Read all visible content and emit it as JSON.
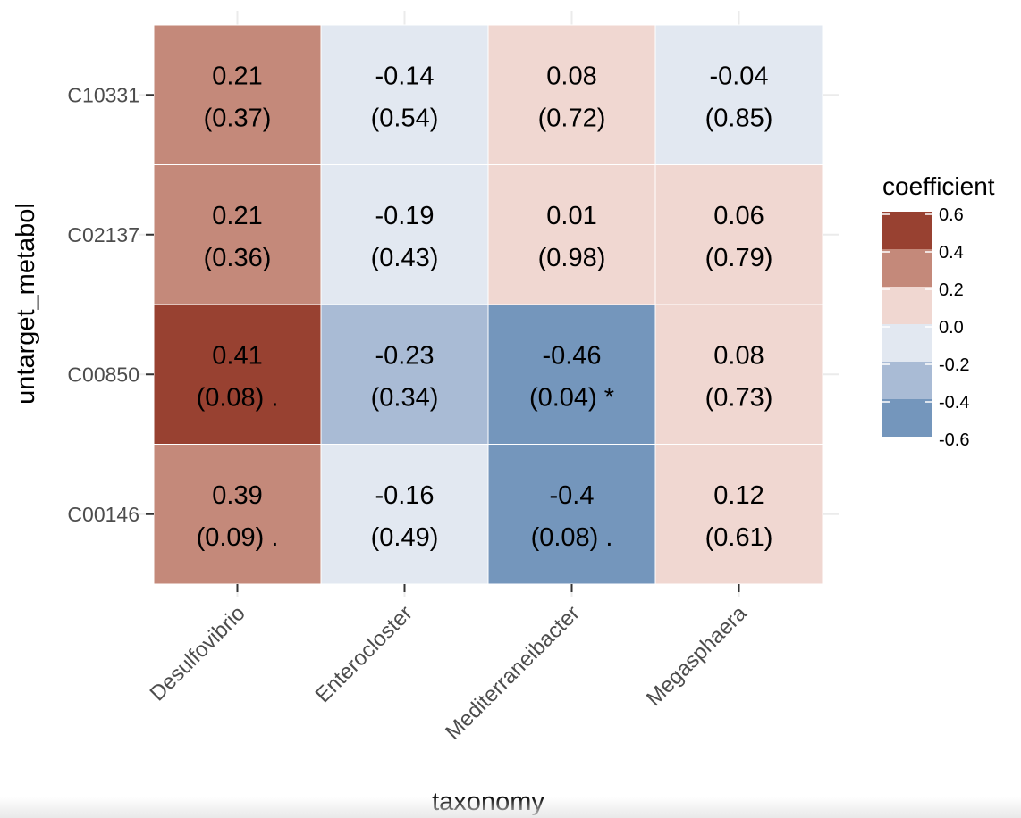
{
  "chart_data": {
    "type": "heatmap",
    "xlabel": "taxonomy",
    "ylabel": "untarget_metabol",
    "x_categories": [
      "Desulfovibrio",
      "Enterocloster",
      "Mediterraneibacter",
      "Megasphaera"
    ],
    "y_categories": [
      "C10331",
      "C02137",
      "C00850",
      "C00146"
    ],
    "cells": [
      {
        "y": "C10331",
        "x": "Desulfovibrio",
        "value": 0.21,
        "value_label": "0.21",
        "p_label": "(0.37)",
        "color": "#c4897a"
      },
      {
        "y": "C10331",
        "x": "Enterocloster",
        "value": -0.14,
        "value_label": "-0.14",
        "p_label": "(0.54)",
        "color": "#e2e8f1"
      },
      {
        "y": "C10331",
        "x": "Mediterraneibacter",
        "value": 0.08,
        "value_label": "0.08",
        "p_label": "(0.72)",
        "color": "#f0d7d1"
      },
      {
        "y": "C10331",
        "x": "Megasphaera",
        "value": -0.04,
        "value_label": "-0.04",
        "p_label": "(0.85)",
        "color": "#e2e8f1"
      },
      {
        "y": "C02137",
        "x": "Desulfovibrio",
        "value": 0.21,
        "value_label": "0.21",
        "p_label": "(0.36)",
        "color": "#c4897a"
      },
      {
        "y": "C02137",
        "x": "Enterocloster",
        "value": -0.19,
        "value_label": "-0.19",
        "p_label": "(0.43)",
        "color": "#e2e8f1"
      },
      {
        "y": "C02137",
        "x": "Mediterraneibacter",
        "value": 0.01,
        "value_label": "0.01",
        "p_label": "(0.98)",
        "color": "#f0d7d1"
      },
      {
        "y": "C02137",
        "x": "Megasphaera",
        "value": 0.06,
        "value_label": "0.06",
        "p_label": "(0.79)",
        "color": "#f0d7d1"
      },
      {
        "y": "C00850",
        "x": "Desulfovibrio",
        "value": 0.41,
        "value_label": "0.41",
        "p_label": "(0.08) .",
        "color": "#984131"
      },
      {
        "y": "C00850",
        "x": "Enterocloster",
        "value": -0.23,
        "value_label": "-0.23",
        "p_label": "(0.34)",
        "color": "#a9bbd5"
      },
      {
        "y": "C00850",
        "x": "Mediterraneibacter",
        "value": -0.46,
        "value_label": "-0.46",
        "p_label": "(0.04) *",
        "color": "#7496bc"
      },
      {
        "y": "C00850",
        "x": "Megasphaera",
        "value": 0.08,
        "value_label": "0.08",
        "p_label": "(0.73)",
        "color": "#f0d7d1"
      },
      {
        "y": "C00146",
        "x": "Desulfovibrio",
        "value": 0.39,
        "value_label": "0.39",
        "p_label": "(0.09) .",
        "color": "#c4897a"
      },
      {
        "y": "C00146",
        "x": "Enterocloster",
        "value": -0.16,
        "value_label": "-0.16",
        "p_label": "(0.49)",
        "color": "#e2e8f1"
      },
      {
        "y": "C00146",
        "x": "Mediterraneibacter",
        "value": -0.4,
        "value_label": "-0.4",
        "p_label": "(0.08) .",
        "color": "#7496bc"
      },
      {
        "y": "C00146",
        "x": "Megasphaera",
        "value": 0.12,
        "value_label": "0.12",
        "p_label": "(0.61)",
        "color": "#f0d7d1"
      }
    ],
    "legend": {
      "title": "coefficient",
      "placement": "right",
      "ticks": [
        "0.6",
        "0.4",
        "0.2",
        "0.0",
        "-0.2",
        "-0.4",
        "-0.6"
      ],
      "bins": [
        {
          "from": 0.4,
          "to": 0.6,
          "color": "#984131"
        },
        {
          "from": 0.2,
          "to": 0.4,
          "color": "#c4897a"
        },
        {
          "from": 0.0,
          "to": 0.2,
          "color": "#f0d7d1"
        },
        {
          "from": -0.2,
          "to": 0.0,
          "color": "#e2e8f1"
        },
        {
          "from": -0.4,
          "to": -0.2,
          "color": "#a9bbd5"
        },
        {
          "from": -0.6,
          "to": -0.4,
          "color": "#7496bc"
        }
      ]
    },
    "grid": true
  }
}
